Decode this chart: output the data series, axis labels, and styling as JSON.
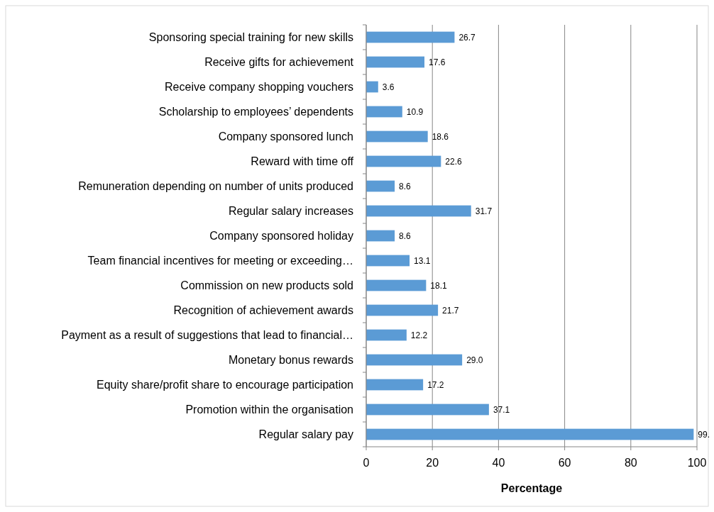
{
  "chart_data": {
    "type": "bar",
    "orientation": "horizontal",
    "xlabel": "Percentage",
    "categories": [
      "Sponsoring special training for new skills",
      "Receive gifts for achievement",
      "Receive company shopping vouchers",
      "Scholarship to employees’ dependents",
      "Company sponsored lunch",
      "Reward with time off",
      "Remuneration depending on number of units produced",
      "Regular salary increases",
      "Company sponsored holiday",
      "Team financial incentives for meeting or exceeding…",
      "Commission on new products sold",
      "Recognition of achievement awards",
      "Payment as a result of suggestions that lead to financial…",
      "Monetary bonus rewards",
      "Equity share/profit share to encourage participation",
      "Promotion within the organisation",
      "Regular salary  pay"
    ],
    "values": [
      26.7,
      17.6,
      3.6,
      10.9,
      18.6,
      22.6,
      8.6,
      31.7,
      8.6,
      13.1,
      18.1,
      21.7,
      12.2,
      29.0,
      17.2,
      37.1,
      99
    ],
    "value_labels": [
      "26.7",
      "17.6",
      "3.6",
      "10.9",
      "18.6",
      "22.6",
      "8.6",
      "31.7",
      "8.6",
      "13.1",
      "18.1",
      "21.7",
      "12.2",
      "29.0",
      "17.2",
      "37.1",
      "99."
    ],
    "color": "#5b9bd5",
    "xlim": [
      0,
      100
    ],
    "xticks": [
      0,
      20,
      40,
      60,
      80,
      100
    ],
    "grid": "x"
  }
}
